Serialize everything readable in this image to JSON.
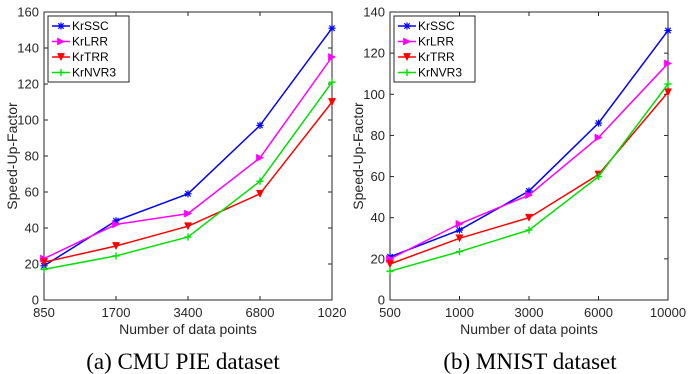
{
  "chart_data": [
    {
      "type": "line",
      "caption": "(a) CMU PIE dataset",
      "xlabel": "Number of data points",
      "ylabel": "Speed-Up-Factor",
      "categories": [
        "850",
        "1700",
        "3400",
        "6800",
        "1020"
      ],
      "ylim": [
        0,
        160
      ],
      "yticks": [
        0,
        20,
        40,
        60,
        80,
        100,
        120,
        140,
        160
      ],
      "grid": false,
      "legend_position": "top-left",
      "series": [
        {
          "name": "KrSSC",
          "color": "#0000ff",
          "marker": "star",
          "values": [
            19,
            44,
            59,
            97,
            151
          ]
        },
        {
          "name": "KrLRR",
          "color": "#ff00ff",
          "marker": "triangle-right",
          "values": [
            23,
            42,
            48,
            79,
            135
          ]
        },
        {
          "name": "KrTRR",
          "color": "#ff0000",
          "marker": "triangle-down",
          "values": [
            21,
            30,
            41,
            59,
            110
          ]
        },
        {
          "name": "KrNVR3",
          "color": "#00e000",
          "marker": "plus",
          "values": [
            17,
            24.5,
            35,
            66,
            121
          ]
        }
      ]
    },
    {
      "type": "line",
      "caption": "(b) MNIST dataset",
      "xlabel": "Number of data points",
      "ylabel": "Speed-Up-Factor",
      "categories": [
        "500",
        "1000",
        "3000",
        "6000",
        "10000"
      ],
      "ylim": [
        0,
        140
      ],
      "yticks": [
        0,
        20,
        40,
        60,
        80,
        100,
        120,
        140
      ],
      "grid": false,
      "legend_position": "top-left",
      "series": [
        {
          "name": "KrSSC",
          "color": "#0000ff",
          "marker": "star",
          "values": [
            21,
            34,
            53,
            86,
            131
          ]
        },
        {
          "name": "KrLRR",
          "color": "#ff00ff",
          "marker": "triangle-right",
          "values": [
            20,
            37,
            51,
            79,
            115
          ]
        },
        {
          "name": "KrTRR",
          "color": "#ff0000",
          "marker": "triangle-down",
          "values": [
            17.5,
            30,
            40,
            61,
            101
          ]
        },
        {
          "name": "KrNVR3",
          "color": "#00e000",
          "marker": "plus",
          "values": [
            14,
            23.5,
            34,
            60,
            105
          ]
        }
      ]
    }
  ]
}
